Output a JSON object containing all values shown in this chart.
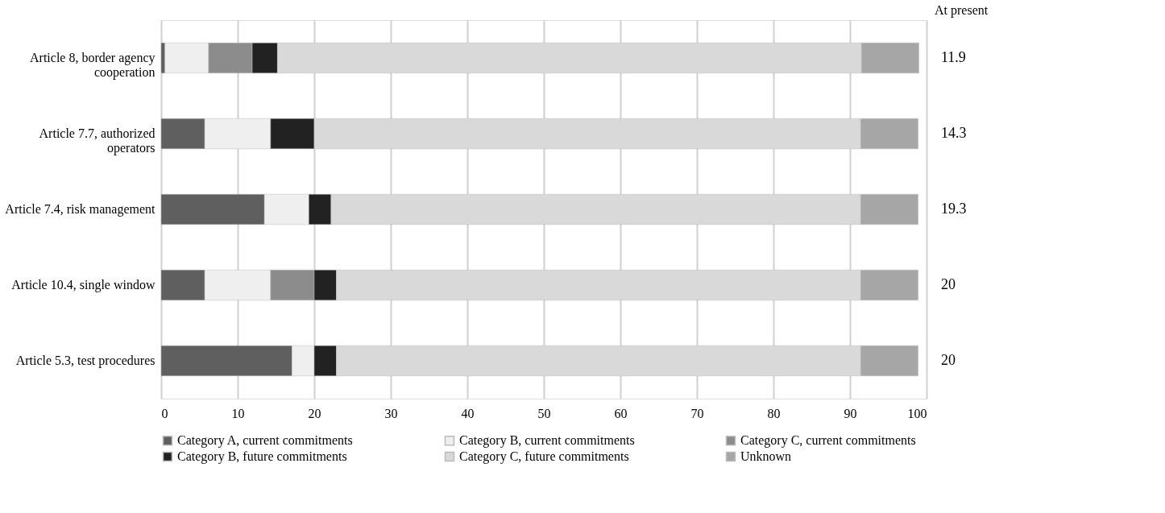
{
  "chart_data": {
    "type": "bar",
    "orientation": "horizontal",
    "stacked": true,
    "categories": [
      "Article 8, border agency cooperation",
      "Article 7.7, authorized operators",
      "Article 7.4, risk management",
      "Article 10.4, single window",
      "Article 5.3, test procedures"
    ],
    "series": [
      {
        "name": "Category A, current commitments",
        "color": "#5f5f5f",
        "values": [
          0.5,
          5.7,
          13.5,
          5.7,
          17.1
        ]
      },
      {
        "name": "Category B, current commitments",
        "color": "#efefef",
        "values": [
          5.7,
          8.6,
          5.8,
          8.6,
          2.9
        ]
      },
      {
        "name": "Category C, current commitments",
        "color": "#8c8c8c",
        "values": [
          5.7,
          null,
          null,
          5.7,
          null
        ]
      },
      {
        "name": "Category B, future commitments",
        "color": "#222222",
        "values": [
          3.3,
          5.7,
          2.9,
          2.9,
          2.9
        ]
      },
      {
        "name": "Category C, future commitments",
        "color": "#d9d9d9",
        "values": [
          76.3,
          71.4,
          69.2,
          68.5,
          68.5
        ]
      },
      {
        "name": "Unknown",
        "color": "#a6a6a6",
        "values": [
          7.5,
          7.5,
          7.5,
          7.5,
          7.5
        ]
      }
    ],
    "xlim": [
      0,
      100
    ],
    "xticks": [
      0,
      10,
      20,
      30,
      40,
      50,
      60,
      70,
      80,
      90,
      100
    ],
    "grid": "x",
    "legend": "bottom",
    "annotations": [
      "At present",
      "11.9",
      "14.3",
      "19.3",
      "20",
      "20"
    ]
  }
}
